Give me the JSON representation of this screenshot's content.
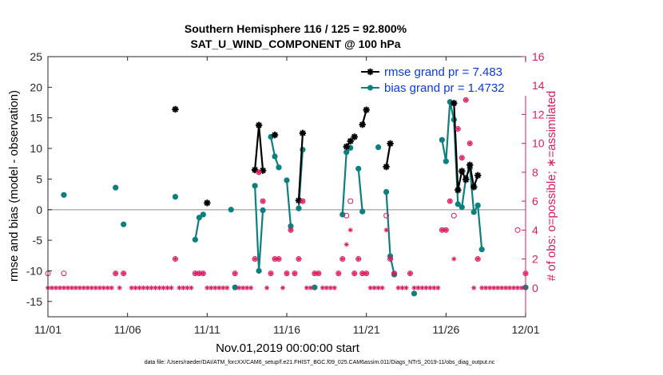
{
  "chart_data": {
    "type": "line",
    "title": [
      "Southern Hemisphere 116 / 125 = 92.800%",
      "SAT_U_WIND_COMPONENT @ 100 hPa"
    ],
    "xlabel": "Nov.01,2019 00:00:00 start",
    "ylabel_left": "rmse and bias (model - observation)",
    "ylabel_right": "# of obs: o=possible; ∗=assimilated",
    "footnote": "data file: /Users/raeder/DAI/ATM_forcXX/CAM6_setup/f.e21.FHIST_BGC.f09_025.CAM6assim.011/Diags_NTrS_2019-11/obs_diag_output.nc",
    "x_ticks": [
      1,
      6,
      11,
      16,
      21,
      26,
      31
    ],
    "x_tick_labels": [
      "11/01",
      "11/06",
      "11/11",
      "11/16",
      "11/21",
      "11/26",
      "12/01"
    ],
    "xlim": [
      1,
      31
    ],
    "ylim_left": [
      -17.5,
      25
    ],
    "yticks_left": [
      -15,
      -10,
      -5,
      0,
      5,
      10,
      15,
      20,
      25
    ],
    "ylim_right": [
      -2,
      16
    ],
    "yticks_right": [
      0,
      2,
      4,
      6,
      8,
      10,
      12,
      14,
      16
    ],
    "zero_line": 0,
    "legend_position": "top-right",
    "colors": {
      "rmse": "#000000",
      "bias": "#0d7f7f",
      "obs": "#e0195f",
      "legend_text": "#0b3bd6",
      "zero": "#b8b8b8"
    },
    "series": [
      {
        "name": "rmse grand pr = 7.483",
        "role": "rmse",
        "segments": [
          [
            [
              9,
              16.4
            ]
          ],
          [
            [
              11,
              1.1
            ]
          ],
          [
            [
              14.0,
              6.5
            ],
            [
              14.25,
              13.8
            ],
            [
              14.5,
              6.4
            ]
          ],
          [
            [
              15.25,
              12.2
            ]
          ],
          [
            [
              16.75,
              1.5
            ],
            [
              17.0,
              12.5
            ]
          ],
          [
            [
              19.75,
              10.3
            ],
            [
              20.0,
              11.2
            ],
            [
              20.25,
              11.9
            ]
          ],
          [
            [
              20.75,
              13.9
            ],
            [
              21.0,
              16.3
            ]
          ],
          [
            [
              22.25,
              7.0
            ],
            [
              22.5,
              10.8
            ]
          ],
          [
            [
              26.5,
              17.4
            ],
            [
              26.75,
              3.2
            ],
            [
              27.0,
              6.3
            ],
            [
              27.25,
              4.9
            ],
            [
              27.5,
              7.3
            ],
            [
              27.75,
              3.7
            ],
            [
              28.0,
              5.6
            ]
          ]
        ]
      },
      {
        "name": "bias grand pr = 1.4732",
        "role": "bias",
        "segments": [
          [
            [
              2,
              2.4
            ]
          ],
          [
            [
              5.25,
              3.6
            ]
          ],
          [
            [
              5.75,
              -2.4
            ]
          ],
          [
            [
              9,
              2.1
            ]
          ],
          [
            [
              10.25,
              -4.9
            ],
            [
              10.5,
              -1.3
            ],
            [
              10.75,
              -0.8
            ]
          ],
          [
            [
              12.5,
              0
            ]
          ],
          [
            [
              12.75,
              -12.7
            ]
          ],
          [
            [
              14.0,
              3.9
            ],
            [
              14.25,
              -10.0
            ],
            [
              14.5,
              -0.1
            ]
          ],
          [
            [
              15.0,
              11.9
            ],
            [
              15.25,
              8.7
            ],
            [
              15.5,
              6.9
            ]
          ],
          [
            [
              16.0,
              4.8
            ],
            [
              16.25,
              -2.7
            ]
          ],
          [
            [
              16.75,
              0.2
            ],
            [
              17.0,
              9.8
            ]
          ],
          [
            [
              17.75,
              -12.7
            ]
          ],
          [
            [
              19.5,
              -0.8
            ],
            [
              19.75,
              9.4
            ],
            [
              20.0,
              10.1
            ]
          ],
          [
            [
              20.5,
              6.7
            ],
            [
              20.75,
              -0.3
            ]
          ],
          [
            [
              21.75,
              10.2
            ]
          ],
          [
            [
              22.25,
              2.9
            ],
            [
              22.5,
              -7.6
            ],
            [
              22.75,
              -10.6
            ]
          ],
          [
            [
              24.0,
              -13.7
            ]
          ],
          [
            [
              25.75,
              11.4
            ],
            [
              26.0,
              7.9
            ],
            [
              26.25,
              17.6
            ],
            [
              26.5,
              14.7
            ],
            [
              26.75,
              0.9
            ],
            [
              27.0,
              0.4
            ],
            [
              27.25,
              5.2
            ],
            [
              27.5,
              6.8
            ],
            [
              27.75,
              -0.4
            ],
            [
              28.0,
              0.7
            ],
            [
              28.25,
              -6.5
            ]
          ],
          [
            [
              31.0,
              -12.7
            ]
          ]
        ]
      }
    ],
    "obs_possible": [
      [
        1,
        1
      ],
      [
        2,
        1
      ],
      [
        5.25,
        1
      ],
      [
        5.75,
        1
      ],
      [
        9,
        2
      ],
      [
        10.25,
        1
      ],
      [
        10.5,
        1
      ],
      [
        10.75,
        1
      ],
      [
        12.75,
        1
      ],
      [
        14.0,
        2
      ],
      [
        14.25,
        8
      ],
      [
        14.5,
        6
      ],
      [
        15.0,
        1
      ],
      [
        15.25,
        2
      ],
      [
        15.5,
        2
      ],
      [
        16.0,
        1
      ],
      [
        16.25,
        4
      ],
      [
        16.5,
        1
      ],
      [
        16.75,
        2
      ],
      [
        17.0,
        6
      ],
      [
        17.75,
        1
      ],
      [
        18.0,
        1
      ],
      [
        19.25,
        1
      ],
      [
        19.5,
        2
      ],
      [
        19.75,
        5
      ],
      [
        20.0,
        6
      ],
      [
        20.25,
        1
      ],
      [
        20.5,
        2
      ],
      [
        20.75,
        1
      ],
      [
        21.0,
        1
      ],
      [
        22.25,
        5
      ],
      [
        22.5,
        2
      ],
      [
        22.75,
        1
      ],
      [
        23.75,
        1
      ],
      [
        25.75,
        4
      ],
      [
        26.0,
        4
      ],
      [
        26.25,
        6
      ],
      [
        26.5,
        5
      ],
      [
        26.75,
        11
      ],
      [
        27.0,
        9
      ],
      [
        27.25,
        13
      ],
      [
        27.5,
        10
      ],
      [
        28.0,
        2
      ],
      [
        30.5,
        4
      ],
      [
        31.0,
        1
      ]
    ],
    "obs_assimilated": [
      [
        1,
        0
      ],
      [
        1.25,
        0
      ],
      [
        1.5,
        0
      ],
      [
        1.75,
        0
      ],
      [
        2,
        0
      ],
      [
        2.25,
        0
      ],
      [
        2.5,
        0
      ],
      [
        2.75,
        0
      ],
      [
        3,
        0
      ],
      [
        3.25,
        0
      ],
      [
        3.5,
        0
      ],
      [
        3.75,
        0
      ],
      [
        4,
        0
      ],
      [
        4.25,
        0
      ],
      [
        4.5,
        0
      ],
      [
        4.75,
        0
      ],
      [
        5,
        0
      ],
      [
        5.25,
        1
      ],
      [
        5.5,
        0
      ],
      [
        5.75,
        1
      ],
      [
        6.25,
        0
      ],
      [
        6.5,
        0
      ],
      [
        6.75,
        0
      ],
      [
        7,
        0
      ],
      [
        7.25,
        0
      ],
      [
        7.5,
        0
      ],
      [
        7.75,
        0
      ],
      [
        8,
        0
      ],
      [
        8.25,
        0
      ],
      [
        8.5,
        0
      ],
      [
        8.75,
        0
      ],
      [
        9,
        2
      ],
      [
        9.25,
        0
      ],
      [
        9.5,
        0
      ],
      [
        9.75,
        0
      ],
      [
        10,
        0
      ],
      [
        10.25,
        1
      ],
      [
        10.5,
        1
      ],
      [
        10.75,
        1
      ],
      [
        11,
        0
      ],
      [
        11.25,
        0
      ],
      [
        11.5,
        0
      ],
      [
        11.75,
        0
      ],
      [
        12,
        0
      ],
      [
        12.25,
        0
      ],
      [
        12.75,
        1
      ],
      [
        13,
        0
      ],
      [
        13.25,
        0
      ],
      [
        13.5,
        0
      ],
      [
        13.75,
        0
      ],
      [
        14.0,
        2
      ],
      [
        14.25,
        8
      ],
      [
        14.5,
        6
      ],
      [
        14.75,
        0
      ],
      [
        15.0,
        1
      ],
      [
        15.25,
        2
      ],
      [
        15.5,
        2
      ],
      [
        15.75,
        0
      ],
      [
        16.0,
        1
      ],
      [
        16.25,
        4
      ],
      [
        16.5,
        1
      ],
      [
        16.75,
        2
      ],
      [
        17.0,
        6
      ],
      [
        17.25,
        0
      ],
      [
        17.5,
        0
      ],
      [
        17.75,
        1
      ],
      [
        18.0,
        1
      ],
      [
        18.25,
        0
      ],
      [
        18.5,
        0
      ],
      [
        18.75,
        0
      ],
      [
        19.0,
        0
      ],
      [
        19.25,
        1
      ],
      [
        19.5,
        2
      ],
      [
        19.75,
        3
      ],
      [
        20.0,
        4
      ],
      [
        20.25,
        1
      ],
      [
        20.5,
        2
      ],
      [
        20.75,
        1
      ],
      [
        21.0,
        1
      ],
      [
        21.25,
        0
      ],
      [
        21.5,
        0
      ],
      [
        21.75,
        0
      ],
      [
        22.0,
        0
      ],
      [
        22.25,
        4
      ],
      [
        22.5,
        2
      ],
      [
        22.75,
        1
      ],
      [
        23.0,
        0
      ],
      [
        23.25,
        0
      ],
      [
        23.5,
        0
      ],
      [
        23.75,
        1
      ],
      [
        24.0,
        0
      ],
      [
        24.25,
        0
      ],
      [
        24.5,
        0
      ],
      [
        24.75,
        0
      ],
      [
        25.0,
        0
      ],
      [
        25.25,
        0
      ],
      [
        25.5,
        0
      ],
      [
        25.75,
        4
      ],
      [
        26.0,
        4
      ],
      [
        26.25,
        6
      ],
      [
        26.5,
        2
      ],
      [
        26.75,
        11
      ],
      [
        27.0,
        9
      ],
      [
        27.25,
        13
      ],
      [
        27.5,
        10
      ],
      [
        27.75,
        0
      ],
      [
        28.0,
        2
      ],
      [
        28.25,
        0
      ],
      [
        28.5,
        0
      ],
      [
        28.75,
        0
      ],
      [
        29.0,
        0
      ],
      [
        29.25,
        0
      ],
      [
        29.5,
        0
      ],
      [
        29.75,
        0
      ],
      [
        30.0,
        0
      ],
      [
        30.25,
        0
      ],
      [
        30.5,
        0
      ],
      [
        30.75,
        0
      ],
      [
        31.0,
        1
      ]
    ]
  }
}
